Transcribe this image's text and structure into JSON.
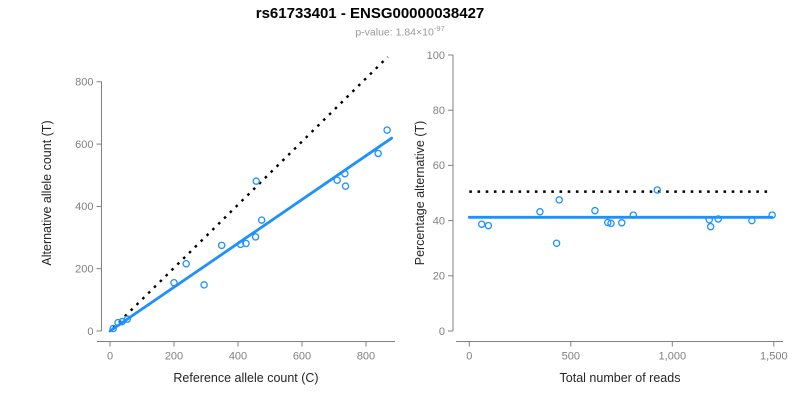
{
  "header": {
    "title": "rs61733401 - ENSG00000038427",
    "p_label": "p-value: 1.84×10",
    "p_exponent": "-97"
  },
  "colors": {
    "points": "#1E90FF",
    "fit_line": "#1E90FF",
    "reference_line": "#000000",
    "axis": "#808080",
    "tick_label": "#808080",
    "axis_title": "#262626"
  },
  "chart_data": [
    {
      "type": "scatter",
      "xlabel": "Reference allele count (C)",
      "ylabel": "Alternative allele count (T)",
      "xlim": [
        0,
        890
      ],
      "ylim": [
        0,
        890
      ],
      "xticks": [
        0,
        200,
        400,
        600,
        800
      ],
      "xtick_labels": [
        "0",
        "200",
        "400",
        "600",
        "800"
      ],
      "yticks": [
        0,
        200,
        400,
        600,
        800
      ],
      "ytick_labels": [
        "0",
        "200",
        "400",
        "600",
        "800"
      ],
      "points": [
        [
          10,
          8
        ],
        [
          25,
          27
        ],
        [
          38,
          30
        ],
        [
          54,
          38
        ],
        [
          200,
          155
        ],
        [
          238,
          216
        ],
        [
          294,
          148
        ],
        [
          349,
          275
        ],
        [
          408,
          278
        ],
        [
          425,
          281
        ],
        [
          455,
          302
        ],
        [
          457,
          481
        ],
        [
          474,
          356
        ],
        [
          710,
          484
        ],
        [
          736,
          465
        ],
        [
          734,
          505
        ],
        [
          838,
          570
        ],
        [
          866,
          645
        ]
      ],
      "fit_line": {
        "x1": 0,
        "y1": 0,
        "x2": 880,
        "y2": 619
      },
      "reference_line": {
        "x1": 10,
        "y1": 10,
        "x2": 868,
        "y2": 880,
        "style": "dotted"
      }
    },
    {
      "type": "scatter",
      "xlabel": "Total number of reads",
      "ylabel": "Percentage alternative (T)",
      "xlim": [
        0,
        1560
      ],
      "ylim": [
        0,
        100
      ],
      "xticks": [
        0,
        500,
        1000,
        1500
      ],
      "xtick_labels": [
        "0",
        "500",
        "1,000",
        "1,500"
      ],
      "yticks": [
        0,
        20,
        40,
        60,
        80,
        100
      ],
      "ytick_labels": [
        "0",
        "20",
        "40",
        "60",
        "80",
        "100"
      ],
      "points": [
        [
          61,
          38.7
        ],
        [
          94,
          38.2
        ],
        [
          348,
          43.2
        ],
        [
          430,
          31.8
        ],
        [
          443,
          47.5
        ],
        [
          619,
          43.6
        ],
        [
          682,
          39.3
        ],
        [
          698,
          39.0
        ],
        [
          751,
          39.2
        ],
        [
          808,
          42.0
        ],
        [
          926,
          51.1
        ],
        [
          1182,
          40.3
        ],
        [
          1189,
          37.8
        ],
        [
          1226,
          40.6
        ],
        [
          1392,
          40.0
        ],
        [
          1492,
          42.0
        ]
      ],
      "fit_line": {
        "x1": 0,
        "y1": 41.2,
        "x2": 1490,
        "y2": 41.2
      },
      "reference_line": {
        "x1": 0,
        "y1": 50.5,
        "x2": 1485,
        "y2": 50.5,
        "style": "dotted"
      }
    }
  ]
}
